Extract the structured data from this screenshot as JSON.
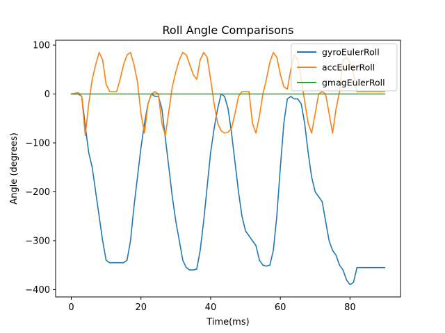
{
  "chart_data": {
    "type": "line",
    "title": "Roll Angle Comparisons",
    "xlabel": "Time(ms)",
    "ylabel": "Angle (degrees)",
    "xlim": [
      -4.5,
      94.5
    ],
    "ylim": [
      -415,
      110
    ],
    "xticks": [
      0,
      20,
      40,
      60,
      80
    ],
    "yticks": [
      100,
      0,
      -100,
      -200,
      -300,
      -400
    ],
    "ytick_labels": [
      "100",
      "0",
      "−100",
      "−200",
      "−300",
      "−400"
    ],
    "grid": false,
    "legend_position": "top-right",
    "series": [
      {
        "name": "gyroEulerRoll",
        "color": "#1f77b4",
        "x": [
          0,
          2,
          3,
          4,
          5,
          6,
          7,
          8,
          9,
          10,
          11,
          12,
          13,
          14,
          15,
          16,
          17,
          18,
          19,
          20,
          21,
          22,
          23,
          24,
          25,
          26,
          27,
          28,
          29,
          30,
          31,
          32,
          33,
          34,
          35,
          36,
          37,
          38,
          39,
          40,
          41,
          42,
          43,
          44,
          45,
          46,
          47,
          48,
          49,
          50,
          51,
          52,
          53,
          54,
          55,
          56,
          57,
          58,
          59,
          60,
          61,
          62,
          63,
          64,
          65,
          66,
          67,
          68,
          69,
          70,
          71,
          72,
          73,
          74,
          75,
          76,
          77,
          78,
          79,
          80,
          81,
          82,
          83,
          84,
          85,
          86,
          87,
          88,
          89,
          90
        ],
        "y": [
          0,
          0,
          -5,
          -65,
          -120,
          -150,
          -200,
          -250,
          -300,
          -340,
          -345,
          -345,
          -345,
          -345,
          -345,
          -340,
          -300,
          -230,
          -170,
          -110,
          -60,
          -20,
          0,
          -5,
          -5,
          -30,
          -90,
          -150,
          -210,
          -260,
          -300,
          -340,
          -355,
          -360,
          -360,
          -358,
          -320,
          -260,
          -190,
          -120,
          -70,
          -30,
          0,
          -5,
          -30,
          -80,
          -140,
          -200,
          -250,
          -280,
          -290,
          -300,
          -310,
          -340,
          -350,
          -352,
          -350,
          -320,
          -250,
          -150,
          -60,
          -10,
          -5,
          -10,
          -10,
          -20,
          -60,
          -120,
          -170,
          -200,
          -210,
          -220,
          -260,
          -300,
          -320,
          -330,
          -350,
          -360,
          -380,
          -390,
          -385,
          -355,
          -355,
          -355,
          -355,
          -355,
          -355,
          -355,
          -355,
          -355
        ]
      },
      {
        "name": "accEulerRoll",
        "color": "#ff7f0e",
        "x": [
          0,
          2,
          3,
          4,
          5,
          6,
          7,
          8,
          9,
          10,
          11,
          12,
          13,
          14,
          15,
          16,
          17,
          18,
          19,
          20,
          21,
          22,
          23,
          24,
          25,
          26,
          27,
          28,
          29,
          30,
          31,
          32,
          33,
          34,
          35,
          36,
          37,
          38,
          39,
          40,
          41,
          42,
          43,
          44,
          45,
          46,
          47,
          48,
          49,
          50,
          51,
          52,
          53,
          54,
          55,
          56,
          57,
          58,
          59,
          60,
          61,
          62,
          63,
          64,
          65,
          66,
          67,
          68,
          69,
          70,
          71,
          72,
          73,
          74,
          75,
          76,
          77,
          78,
          79,
          80,
          81,
          82,
          83,
          84,
          85,
          86,
          87,
          88,
          89,
          90
        ],
        "y": [
          0,
          3,
          -5,
          -85,
          -20,
          30,
          60,
          85,
          70,
          20,
          5,
          5,
          5,
          30,
          60,
          80,
          85,
          60,
          25,
          -40,
          -80,
          -20,
          0,
          5,
          0,
          -60,
          -85,
          -35,
          15,
          45,
          70,
          85,
          80,
          60,
          40,
          30,
          70,
          85,
          75,
          30,
          -20,
          -60,
          -75,
          -80,
          -78,
          -70,
          -40,
          -5,
          5,
          5,
          5,
          -60,
          -80,
          -45,
          0,
          30,
          65,
          85,
          75,
          40,
          15,
          10,
          50,
          80,
          70,
          30,
          -15,
          -60,
          -80,
          -40,
          0,
          5,
          0,
          -40,
          -80,
          -30,
          5,
          70,
          75,
          65,
          40,
          5,
          5,
          5,
          5,
          5,
          5,
          5,
          5,
          5
        ]
      },
      {
        "name": "gmagEulerRoll",
        "color": "#2ca02c",
        "x": [
          0,
          90
        ],
        "y": [
          0,
          0
        ]
      }
    ]
  }
}
